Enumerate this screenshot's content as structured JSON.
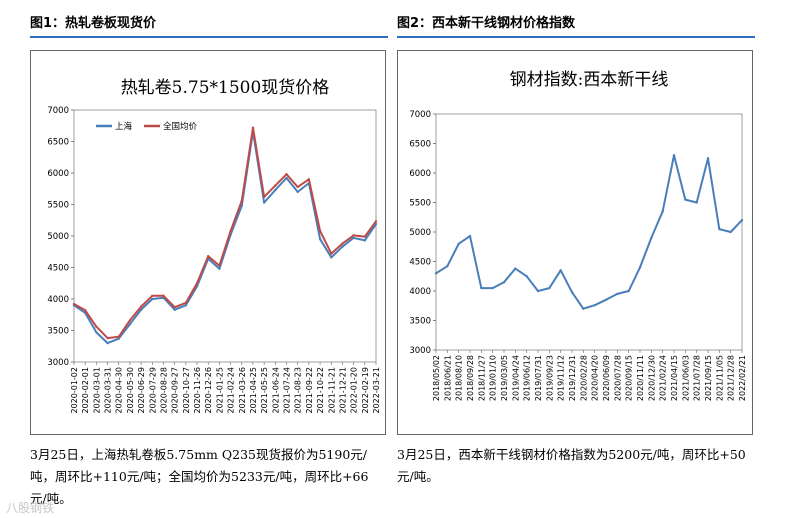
{
  "figure1": {
    "header": "图1：热轧卷板现货价",
    "caption": "3月25日，上海热轧卷板5.75mm Q235现货报价为5190元/吨，周环比+110元/吨；全国均价为5233元/吨，周环比+66元/吨。"
  },
  "figure2": {
    "header": "图2：西本新干线钢材价格指数",
    "caption": "3月25日，西本新干线钢材价格指数为5200元/吨，周环比+50元/吨。"
  },
  "watermark": "八股钢铁",
  "chart_data": [
    {
      "type": "line",
      "title": "热轧卷5.75*1500现货价格",
      "xlabel": "",
      "ylabel": "",
      "ylim": [
        3000,
        7000
      ],
      "yticks": [
        3000,
        3500,
        4000,
        4500,
        5000,
        5500,
        6000,
        6500,
        7000
      ],
      "legend": [
        "上海",
        "全国均价"
      ],
      "legend_position": "top-left",
      "categories": [
        "2020-01-02",
        "2020-02-01",
        "2020-03-01",
        "2020-03-31",
        "2020-04-30",
        "2020-05-30",
        "2020-06-29",
        "2020-07-29",
        "2020-08-28",
        "2020-09-27",
        "2020-10-27",
        "2020-11-26",
        "2020-12-26",
        "2021-01-25",
        "2021-02-24",
        "2021-03-26",
        "2021-04-25",
        "2021-05-25",
        "2021-06-24",
        "2021-07-24",
        "2021-08-23",
        "2021-09-22",
        "2021-10-22",
        "2021-11-21",
        "2021-12-21",
        "2022-01-20",
        "2022-02-19",
        "2022-03-21"
      ],
      "series": [
        {
          "name": "上海",
          "color": "#4a7ebb",
          "values": [
            3900,
            3780,
            3470,
            3300,
            3370,
            3600,
            3830,
            4000,
            4020,
            3830,
            3900,
            4200,
            4640,
            4480,
            5020,
            5480,
            6660,
            5530,
            5730,
            5920,
            5700,
            5840,
            4950,
            4660,
            4830,
            4970,
            4930,
            5190
          ]
        },
        {
          "name": "全国均价",
          "color": "#be4b48",
          "values": [
            3920,
            3820,
            3560,
            3380,
            3400,
            3660,
            3880,
            4050,
            4050,
            3870,
            3940,
            4250,
            4680,
            4530,
            5080,
            5560,
            6720,
            5620,
            5800,
            5980,
            5780,
            5900,
            5080,
            4720,
            4880,
            5010,
            4990,
            5233
          ]
        }
      ]
    },
    {
      "type": "line",
      "title": "钢材指数:西本新干线",
      "xlabel": "",
      "ylabel": "",
      "ylim": [
        3000,
        7000
      ],
      "yticks": [
        3000,
        3500,
        4000,
        4500,
        5000,
        5500,
        6000,
        6500,
        7000
      ],
      "categories": [
        "2018/05/02",
        "2018/06/21",
        "2018/08/10",
        "2018/09/28",
        "2018/11/27",
        "2019/01/10",
        "2019/03/05",
        "2019/04/24",
        "2019/06/12",
        "2019/07/31",
        "2019/09/23",
        "2019/11/12",
        "2019/12/31",
        "2020/02/28",
        "2020/04/20",
        "2020/06/09",
        "2020/07/28",
        "2020/09/15",
        "2020/11/11",
        "2020/12/30",
        "2021/02/24",
        "2021/04/15",
        "2021/06/03",
        "2021/07/28",
        "2021/09/15",
        "2021/11/05",
        "2021/12/28",
        "2022/02/21"
      ],
      "series": [
        {
          "name": "西本新干线",
          "color": "#4a7ebb",
          "values": [
            4300,
            4420,
            4800,
            4930,
            4050,
            4050,
            4150,
            4380,
            4250,
            4000,
            4050,
            4350,
            3980,
            3700,
            3760,
            3850,
            3950,
            4000,
            4400,
            4900,
            5350,
            6300,
            5550,
            5500,
            6250,
            5050,
            5000,
            5200
          ]
        }
      ]
    }
  ]
}
